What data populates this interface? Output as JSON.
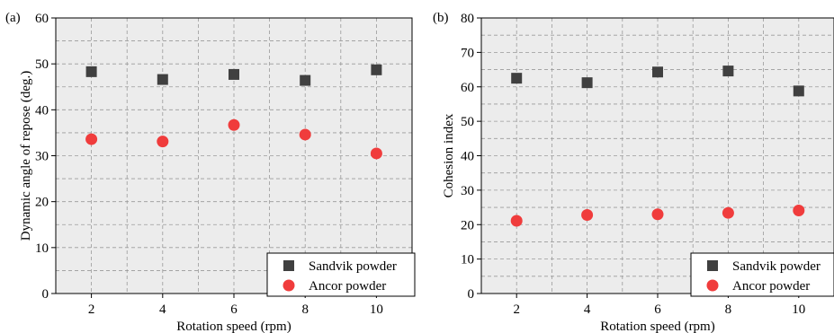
{
  "chart_data": [
    {
      "type": "scatter",
      "panel_label": "(a)",
      "xlabel": "Rotation speed (rpm)",
      "ylabel": "Dynamic angle of repose (deg.)",
      "x": [
        2,
        4,
        6,
        8,
        10
      ],
      "xlim": [
        1,
        11
      ],
      "ylim": [
        0,
        60
      ],
      "xticks": [
        2,
        4,
        6,
        8,
        10
      ],
      "yticks": [
        0,
        10,
        20,
        30,
        40,
        50,
        60
      ],
      "grid": true,
      "legend_position": "bottom-right",
      "series": [
        {
          "name": "Sandvik powder",
          "marker": "square",
          "color": "#404040",
          "values": [
            48.3,
            46.6,
            47.7,
            46.4,
            48.7
          ]
        },
        {
          "name": "Ancor powder",
          "marker": "circle",
          "color": "#f03c3c",
          "values": [
            33.6,
            33.1,
            36.7,
            34.6,
            30.5
          ]
        }
      ]
    },
    {
      "type": "scatter",
      "panel_label": "(b)",
      "xlabel": "Rotation speed (rpm)",
      "ylabel": "Cohesion index",
      "x": [
        2,
        4,
        6,
        8,
        10
      ],
      "xlim": [
        1,
        11
      ],
      "ylim": [
        0,
        80
      ],
      "xticks": [
        2,
        4,
        6,
        8,
        10
      ],
      "yticks": [
        0,
        10,
        20,
        30,
        40,
        50,
        60,
        70,
        80
      ],
      "grid": true,
      "legend_position": "bottom-right",
      "series": [
        {
          "name": "Sandvik powder",
          "marker": "square",
          "color": "#404040",
          "values": [
            62.5,
            61.2,
            64.3,
            64.6,
            58.8
          ]
        },
        {
          "name": "Ancor powder",
          "marker": "circle",
          "color": "#f03c3c",
          "values": [
            21.1,
            22.8,
            23.0,
            23.4,
            24.1
          ]
        }
      ]
    }
  ]
}
